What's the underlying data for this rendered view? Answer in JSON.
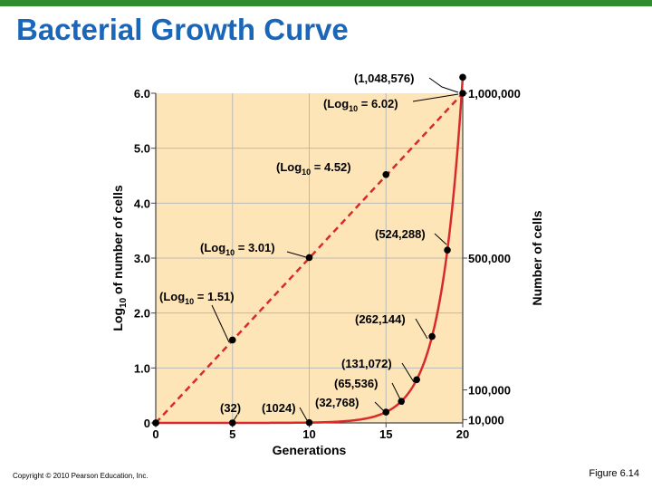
{
  "slide": {
    "title": "Bacterial Growth Curve",
    "copyright": "Copyright © 2010 Pearson Education, Inc.",
    "figure": "Figure 6.14"
  },
  "colors": {
    "top_bar": "#2e8b2e",
    "title": "#1a66b8",
    "plot_bg": "#fde5b8",
    "curve": "#d92a2a"
  },
  "chart_data": {
    "type": "line",
    "title": "",
    "xlabel": "Generations",
    "ylabel": "Log10 of number of cells",
    "ylabel_main": "Log",
    "ylabel_sub": "10",
    "ylabel_rest": " of number of cells",
    "y2label": "Number of cells",
    "xlim": [
      0,
      20
    ],
    "ylim": [
      0,
      6
    ],
    "x_ticks": [
      "0",
      "5",
      "10",
      "15",
      "20"
    ],
    "y_ticks": [
      "0",
      "1.0",
      "2.0",
      "3.0",
      "4.0",
      "5.0",
      "6.0"
    ],
    "right_ticks": [
      {
        "label": "1,000,000",
        "value": 1000000
      },
      {
        "label": "500,000",
        "value": 500000
      },
      {
        "label": "100,000",
        "value": 100000
      },
      {
        "label": "10,000",
        "value": 10000
      }
    ],
    "grid": true,
    "series": [
      {
        "style": "dashed",
        "axis": "log",
        "x": [
          0,
          5,
          10,
          15,
          20
        ],
        "y": [
          0,
          1.51,
          3.01,
          4.52,
          6.02
        ],
        "labels": [
          "",
          "(Log10 = 1.51)",
          "(Log10 = 3.01)",
          "(Log10 = 4.52)",
          "(Log10 = 6.02)"
        ]
      },
      {
        "style": "solid",
        "axis": "linear",
        "x": [
          0,
          5,
          10,
          15,
          16,
          17,
          18,
          19,
          20
        ],
        "y": [
          1,
          32,
          1024,
          32768,
          65536,
          131072,
          262144,
          524288,
          1048576
        ],
        "labels": [
          "",
          "(32)",
          "(1024)",
          "(32,768)",
          "(65,536)",
          "(131,072)",
          "(262,144)",
          "(524,288)",
          "(1,048,576)"
        ]
      }
    ],
    "annotations": [
      {
        "pre": "(Log",
        "sub": "10",
        "post": " = 6.02)"
      },
      {
        "pre": "(Log",
        "sub": "10",
        "post": " = 4.52)"
      },
      {
        "pre": "(Log",
        "sub": "10",
        "post": " = 3.01)"
      },
      {
        "pre": "(Log",
        "sub": "10",
        "post": " = 1.51)"
      },
      {
        "text": "(1,048,576)"
      },
      {
        "text": "(524,288)"
      },
      {
        "text": "(262,144)"
      },
      {
        "text": "(131,072)"
      },
      {
        "text": "(65,536)"
      },
      {
        "text": "(32,768)"
      },
      {
        "text": "(32)"
      },
      {
        "text": "(1024)"
      }
    ]
  }
}
